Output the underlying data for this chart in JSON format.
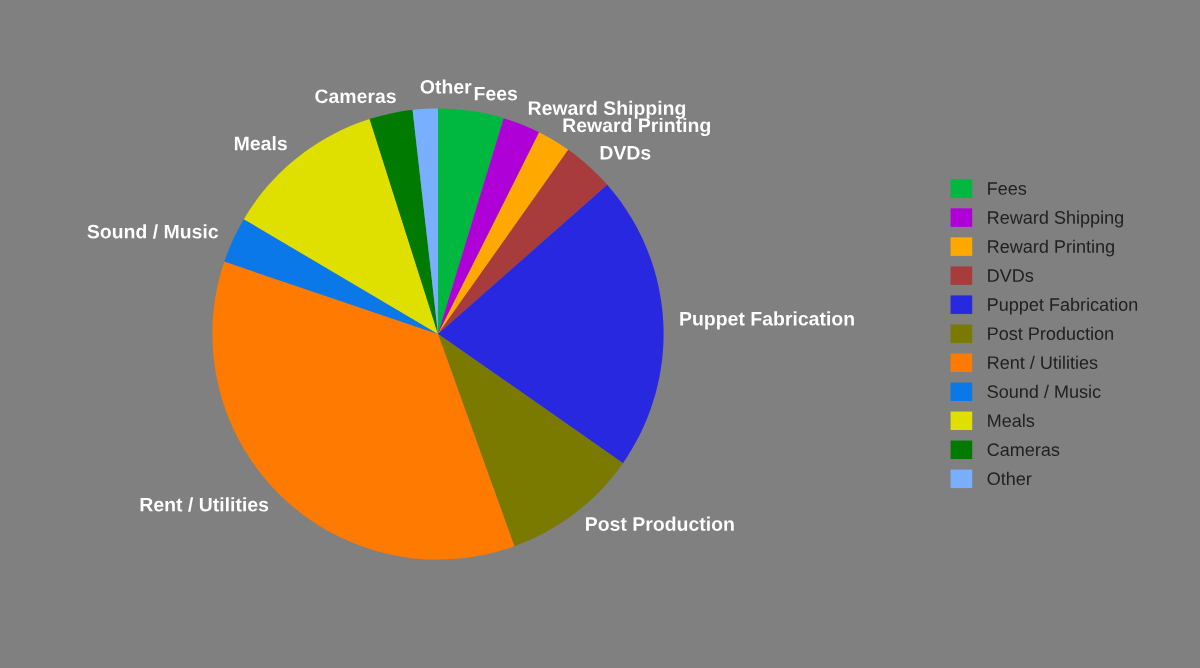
{
  "chart_data": {
    "type": "pie",
    "categories": [
      "Fees",
      "Reward Shipping",
      "Reward Printing",
      "DVDs",
      "Puppet Fabrication",
      "Post Production",
      "Rent / Utilities",
      "Sound / Music",
      "Meals",
      "Cameras",
      "Other"
    ],
    "values": [
      4.7,
      2.7,
      2.4,
      3.7,
      21.2,
      9.8,
      35.7,
      3.3,
      11.6,
      3.1,
      1.8
    ],
    "colors": [
      "#00b840",
      "#b000d8",
      "#ffa800",
      "#a83c3c",
      "#2828e0",
      "#7a7a00",
      "#ff7a00",
      "#0a78e8",
      "#e0e000",
      "#007a00",
      "#78b0ff"
    ],
    "legend": "right"
  }
}
